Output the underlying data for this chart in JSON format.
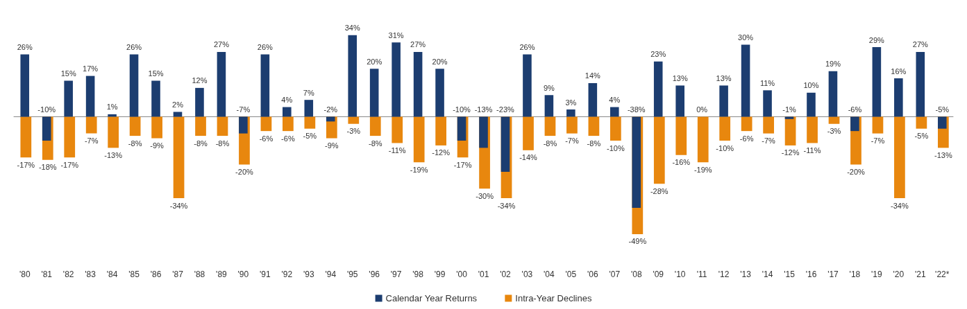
{
  "chart_data": {
    "type": "bar",
    "categories": [
      "'80",
      "'81",
      "'82",
      "'83",
      "'84",
      "'85",
      "'86",
      "'87",
      "'88",
      "'89",
      "'90",
      "'91",
      "'92",
      "'93",
      "'94",
      "'95",
      "'96",
      "'97",
      "'98",
      "'99",
      "'00",
      "'01",
      "'02",
      "'03",
      "'04",
      "'05",
      "'06",
      "'07",
      "'08",
      "'09",
      "'10",
      "'11",
      "'12",
      "'13",
      "'14",
      "'15",
      "'16",
      "'17",
      "'18",
      "'19",
      "'20",
      "'21",
      "'22*"
    ],
    "series": [
      {
        "name": "Intra-Year Declines",
        "color": "#e8870e",
        "values": [
          -17,
          -18,
          -17,
          -7,
          -13,
          -8,
          -9,
          -34,
          -8,
          -8,
          -20,
          -6,
          -6,
          -5,
          -9,
          -3,
          -8,
          -11,
          -19,
          -12,
          -17,
          -30,
          -34,
          -14,
          -8,
          -7,
          -8,
          -10,
          -49,
          -28,
          -16,
          -19,
          -10,
          -6,
          -7,
          -12,
          -11,
          -3,
          -20,
          -7,
          -34,
          -5,
          -13
        ],
        "value_labels": [
          "-17%",
          "-18%",
          "-17%",
          "-7%",
          "-13%",
          "-8%",
          "-9%",
          "-34%",
          "-8%",
          "-8%",
          "-20%",
          "-6%",
          "-6%",
          "-5%",
          "-9%",
          "-3%",
          "-8%",
          "-11%",
          "-19%",
          "-12%",
          "-17%",
          "-30%",
          "-34%",
          "-14%",
          "-8%",
          "-7%",
          "-8%",
          "-10%",
          "-49%",
          "-28%",
          "-16%",
          "-19%",
          "-10%",
          "-6%",
          "-7%",
          "-12%",
          "-11%",
          "-3%",
          "-20%",
          "-7%",
          "-34%",
          "-5%",
          "-13%"
        ]
      },
      {
        "name": "Calendar Year Returns",
        "color": "#1c3d70",
        "values": [
          26,
          -10,
          15,
          17,
          1,
          26,
          15,
          2,
          12,
          27,
          -7,
          26,
          4,
          7,
          -2,
          34,
          20,
          31,
          27,
          20,
          -10,
          -13,
          -23,
          26,
          9,
          3,
          14,
          4,
          -38,
          23,
          13,
          0,
          13,
          30,
          11,
          -1,
          10,
          19,
          -6,
          29,
          16,
          27,
          -5
        ],
        "value_labels": [
          "26%",
          "-10%",
          "15%",
          "17%",
          "1%",
          "26%",
          "15%",
          "2%",
          "12%",
          "27%",
          "-7%",
          "26%",
          "4%",
          "7%",
          "-2%",
          "34%",
          "20%",
          "31%",
          "27%",
          "20%",
          "-10%",
          "-13%",
          "-23%",
          "26%",
          "9%",
          "3%",
          "14%",
          "4%",
          "-38%",
          "23%",
          "13%",
          "0%",
          "13%",
          "30%",
          "11%",
          "-1%",
          "10%",
          "19%",
          "-6%",
          "29%",
          "16%",
          "27%",
          "-5%"
        ]
      }
    ],
    "legend": "bottom",
    "grid": false
  }
}
